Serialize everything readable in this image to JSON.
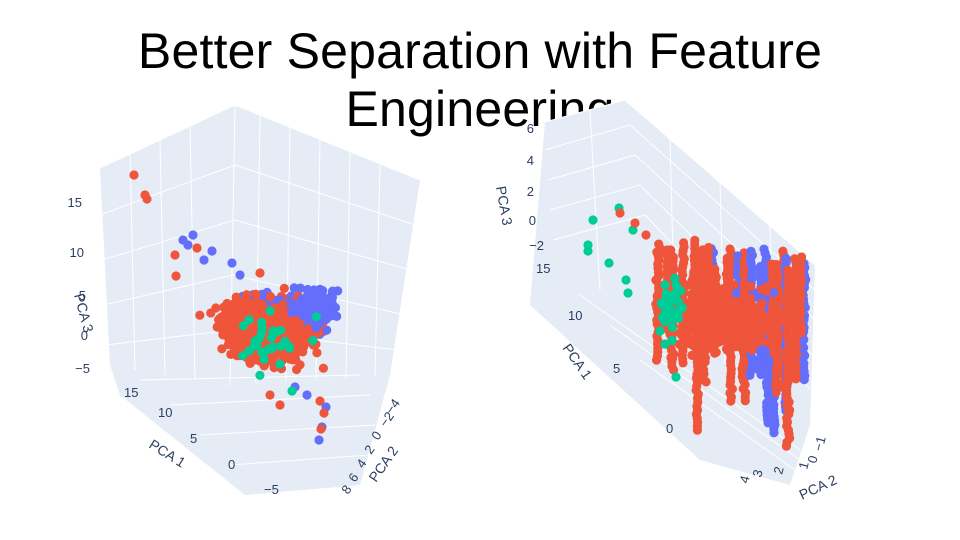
{
  "title": "Better Separation with Feature Engineering",
  "colors": {
    "pane": "#e5ecf6",
    "purple": "#636efa",
    "red": "#ef553b",
    "green": "#00cc96"
  },
  "chart_data": [
    {
      "type": "scatter",
      "subtype": "scatter3d",
      "title": "",
      "axes": {
        "x": {
          "label": "PCA 1",
          "ticks": [
            "15",
            "10",
            "5",
            "0",
            "−5"
          ]
        },
        "y": {
          "label": "PCA 2",
          "ticks": [
            "−4",
            "−2",
            "0",
            "2",
            "4",
            "6",
            "8"
          ]
        },
        "z": {
          "label": "PCA 3",
          "ticks": [
            "15",
            "10",
            "5",
            "0",
            "−5"
          ]
        }
      },
      "grid": true,
      "series": [
        {
          "color": "#636efa",
          "approx_points": 1500
        },
        {
          "color": "#ef553b",
          "approx_points": 2000
        },
        {
          "color": "#00cc96",
          "approx_points": 60
        }
      ]
    },
    {
      "type": "scatter",
      "subtype": "scatter3d",
      "title": "",
      "axes": {
        "x": {
          "label": "PCA 1",
          "ticks": [
            "15",
            "10",
            "5",
            "0"
          ]
        },
        "y": {
          "label": "PCA 2",
          "ticks": [
            "−1",
            "0",
            "1",
            "2",
            "3",
            "4"
          ]
        },
        "z": {
          "label": "PCA 3",
          "ticks": [
            "6",
            "4",
            "2",
            "0",
            "−2"
          ]
        }
      },
      "grid": true,
      "series": [
        {
          "color": "#636efa",
          "approx_points": 1500
        },
        {
          "color": "#ef553b",
          "approx_points": 2000
        },
        {
          "color": "#00cc96",
          "approx_points": 150
        }
      ]
    }
  ]
}
